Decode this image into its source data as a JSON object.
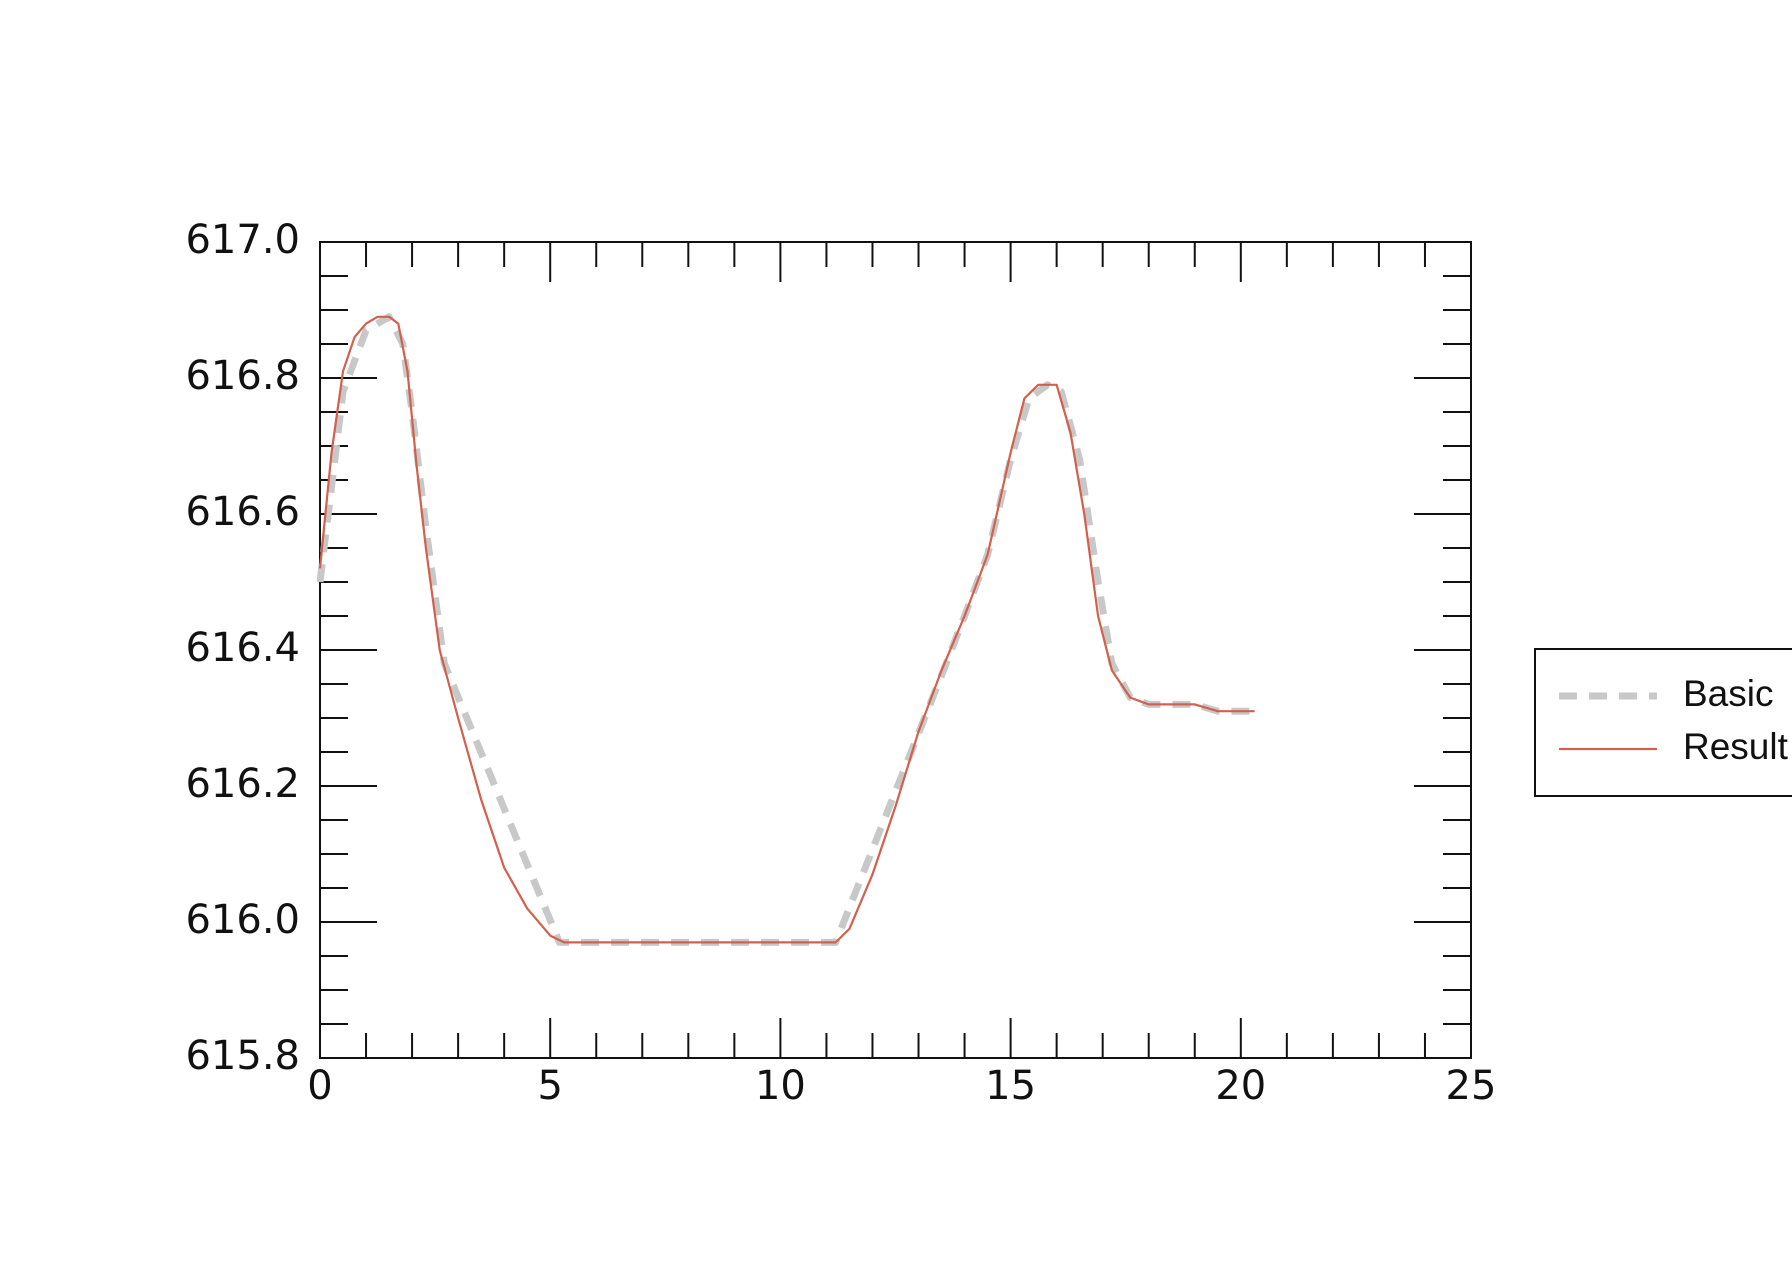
{
  "chart_data": {
    "type": "line",
    "x": [
      0,
      0.25,
      0.5,
      0.75,
      1.0,
      1.25,
      1.5,
      1.7,
      1.9,
      2.1,
      2.3,
      2.6,
      3.0,
      3.5,
      4.0,
      4.5,
      5.0,
      5.3,
      11.2,
      11.5,
      12.0,
      12.5,
      13.0,
      13.5,
      14.0,
      14.5,
      15.0,
      15.3,
      15.6,
      16.0,
      16.3,
      16.6,
      16.9,
      17.2,
      17.6,
      18.0,
      19.0,
      19.5,
      20.3
    ],
    "series": [
      {
        "name": "Basic",
        "color": "#c8c8c8",
        "dashed": true,
        "x": [
          0,
          0.5,
          1.0,
          1.5,
          1.8,
          2.0,
          2.3,
          2.7,
          5.2,
          11.2,
          13.6,
          14.0,
          14.5,
          15.0,
          15.4,
          15.8,
          16.1,
          16.5,
          16.9,
          17.2,
          17.6,
          18.0,
          19.0,
          19.5,
          20.3
        ],
        "values": [
          616.5,
          616.78,
          616.87,
          616.89,
          616.85,
          616.75,
          616.58,
          616.38,
          615.97,
          615.97,
          616.38,
          616.45,
          616.54,
          616.68,
          616.77,
          616.79,
          616.78,
          616.68,
          616.5,
          616.38,
          616.33,
          616.32,
          616.32,
          616.31,
          616.31
        ]
      },
      {
        "name": "Result",
        "color": "#d2604c",
        "dashed": false,
        "values": [
          616.52,
          616.69,
          616.81,
          616.86,
          616.88,
          616.89,
          616.89,
          616.88,
          616.81,
          616.67,
          616.55,
          616.4,
          616.3,
          616.18,
          616.08,
          616.02,
          615.98,
          615.97,
          615.97,
          615.99,
          616.07,
          616.17,
          616.28,
          616.37,
          616.45,
          616.54,
          616.69,
          616.77,
          616.79,
          616.79,
          616.72,
          616.6,
          616.45,
          616.37,
          616.33,
          616.32,
          616.32,
          616.31,
          616.31
        ]
      }
    ],
    "xlim": [
      0,
      25
    ],
    "xticks": [
      0,
      5,
      10,
      15,
      20,
      25
    ],
    "ylim": [
      615.8,
      617.0
    ],
    "yticks": [
      {
        "value": 615.8,
        "label": "615.8"
      },
      {
        "value": 616.0,
        "label": "616.0"
      },
      {
        "value": 616.2,
        "label": "616.2"
      },
      {
        "value": 616.4,
        "label": "616.4"
      },
      {
        "value": 616.6,
        "label": "616.6"
      },
      {
        "value": 616.8,
        "label": "616.8"
      },
      {
        "value": 617.0,
        "label": "617.0"
      }
    ],
    "legend": "right"
  }
}
